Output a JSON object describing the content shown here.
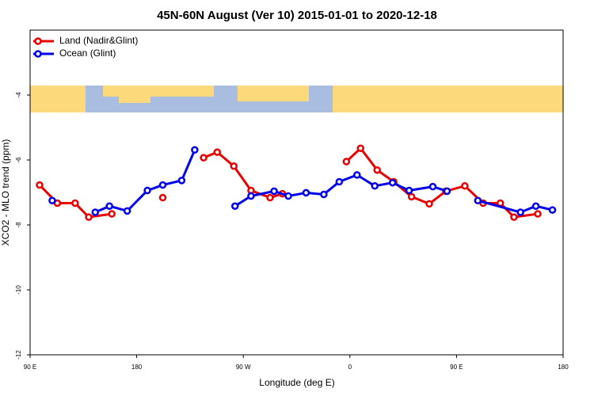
{
  "chart_data": {
    "type": "line",
    "title": "45N-60N August (Ver 10)   2015-01-01 to 2020-12-18",
    "xlabel": "Longitude (deg E)",
    "ylabel": "XCO2 - MLO trend (ppm)",
    "xlim": [
      90,
      540
    ],
    "ylim": [
      -12,
      -2
    ],
    "xticks": [
      {
        "value": 90,
        "label": "90 E"
      },
      {
        "value": 180,
        "label": "180"
      },
      {
        "value": 270,
        "label": "90 W"
      },
      {
        "value": 360,
        "label": "0"
      },
      {
        "value": 450,
        "label": "90 E"
      },
      {
        "value": 540,
        "label": "180"
      }
    ],
    "yticks": [
      -4,
      -6,
      -8,
      -10,
      -12
    ],
    "legend": "upper left",
    "series": [
      {
        "name": "Land (Nadir&Glint)",
        "color": "#e80000",
        "x": [
          98,
          113,
          128,
          139.5,
          159,
          null,
          202,
          null,
          236.5,
          248,
          262,
          276.5,
          292.6,
          303,
          null,
          357,
          369,
          383,
          397,
          412,
          427,
          441,
          457,
          472.5,
          487,
          498.5,
          518.6
        ],
        "values": [
          -6.77,
          -7.33,
          -7.33,
          -7.76,
          -7.66,
          null,
          -7.16,
          null,
          -5.93,
          -5.76,
          -6.19,
          -6.94,
          -7.16,
          -7.04,
          null,
          -6.05,
          -5.64,
          -6.31,
          -6.67,
          -7.13,
          -7.35,
          -6.96,
          -6.8,
          -7.33,
          -7.33,
          -7.76,
          -7.66
        ]
      },
      {
        "name": "Ocean (Glint)",
        "color": "#0000e8",
        "x": [
          108.7,
          null,
          145,
          157,
          172,
          189,
          202,
          218,
          229,
          null,
          263,
          276.5,
          296,
          308,
          323,
          338,
          351,
          366,
          381,
          396,
          410,
          430,
          442,
          null,
          468,
          504,
          517,
          531
        ],
        "values": [
          -7.25,
          null,
          -7.61,
          -7.42,
          -7.57,
          -6.94,
          -6.77,
          -6.63,
          -5.69,
          null,
          -7.42,
          -7.11,
          -6.96,
          -7.11,
          -7.01,
          -7.06,
          -6.67,
          -6.46,
          -6.8,
          -6.7,
          -6.94,
          -6.82,
          -6.96,
          null,
          -7.25,
          -7.61,
          -7.42,
          -7.54
        ]
      }
    ]
  }
}
